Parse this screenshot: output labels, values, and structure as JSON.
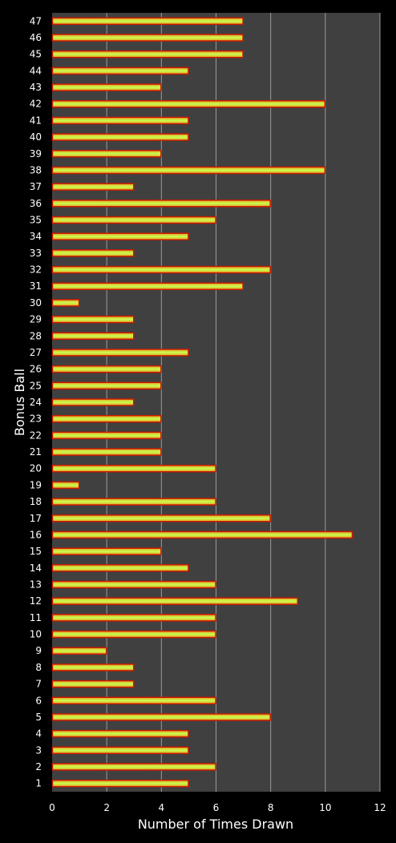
{
  "chart_data": {
    "type": "bar",
    "orientation": "horizontal",
    "title": "",
    "xlabel": "Number of Times Drawn",
    "ylabel": "Bonus Ball",
    "xlim": [
      0,
      12
    ],
    "xticks": [
      "0",
      "2",
      "4",
      "6",
      "8",
      "10",
      "12"
    ],
    "grid": "vertical",
    "legend": "none",
    "categories": [
      "1",
      "2",
      "3",
      "4",
      "5",
      "6",
      "7",
      "8",
      "9",
      "10",
      "11",
      "12",
      "13",
      "14",
      "15",
      "16",
      "17",
      "18",
      "19",
      "20",
      "21",
      "22",
      "23",
      "24",
      "25",
      "26",
      "27",
      "28",
      "29",
      "30",
      "31",
      "32",
      "33",
      "34",
      "35",
      "36",
      "37",
      "38",
      "39",
      "40",
      "41",
      "42",
      "43",
      "44",
      "45",
      "46",
      "47"
    ],
    "values": [
      5,
      6,
      5,
      5,
      8,
      6,
      3,
      3,
      2,
      6,
      6,
      9,
      6,
      5,
      4,
      11,
      8,
      6,
      1,
      6,
      4,
      4,
      4,
      3,
      4,
      4,
      5,
      3,
      3,
      1,
      7,
      8,
      3,
      5,
      6,
      8,
      3,
      10,
      4,
      5,
      5,
      10,
      4,
      5,
      7,
      7,
      7
    ],
    "colors": {
      "background": "#000000",
      "plot_area": "#404040",
      "gridline": "#9a9a9a",
      "bar_outline": "#cc1a00",
      "bar_fill_edge": "#e8a020",
      "bar_fill_center": "#c8ff50",
      "text": "#ffffff"
    }
  }
}
